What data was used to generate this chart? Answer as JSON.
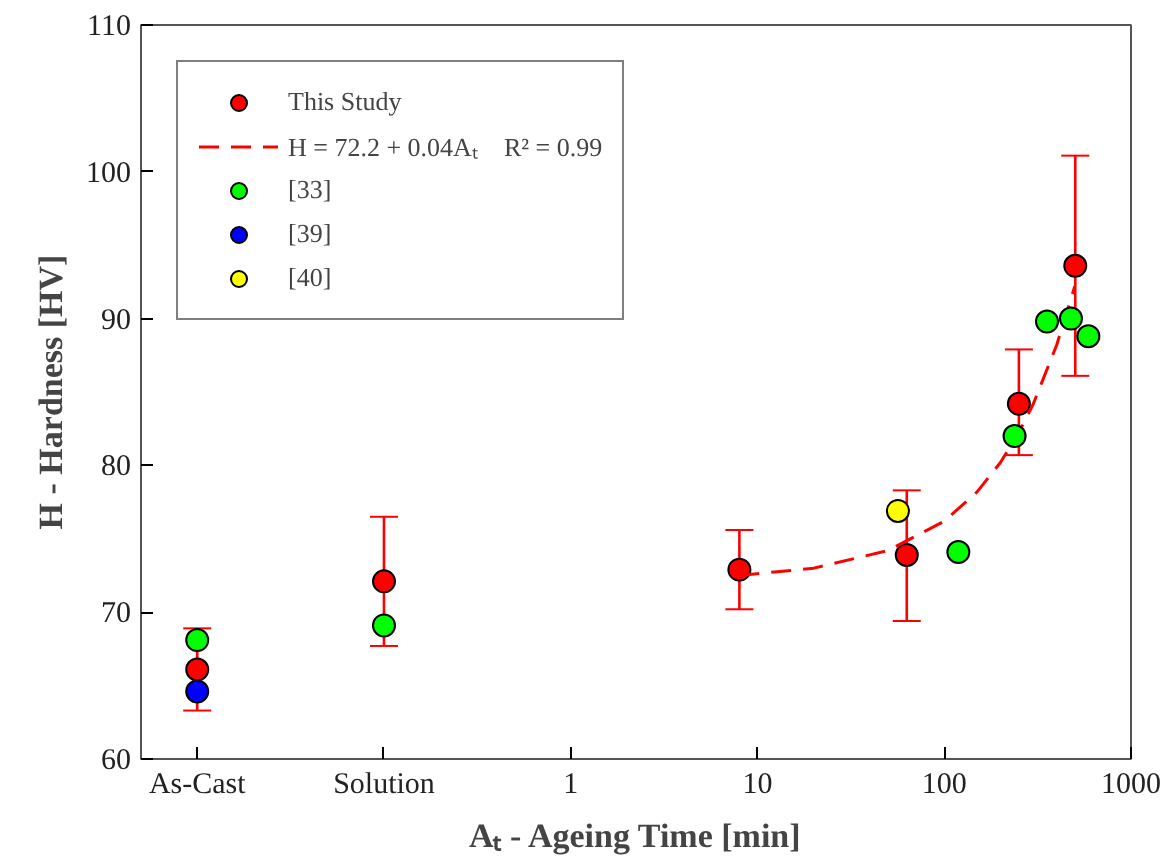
{
  "chart_data": {
    "type": "scatter",
    "xlabel": "Aₜ - Ageing Time [min]",
    "ylabel": "H - Hardness [HV]",
    "log": "x",
    "xlim": [
      0.005,
      1000
    ],
    "ylim": [
      60,
      110
    ],
    "xticks": [
      {
        "value": 0.01,
        "label": "As-Cast"
      },
      {
        "value": 0.1,
        "label": "Solution"
      },
      1,
      10,
      100,
      1000
    ],
    "yticks": [
      60,
      70,
      80,
      90,
      100,
      110
    ],
    "grid": false,
    "legend": "top left",
    "marker": "circle",
    "series": [
      {
        "name": "This Study",
        "color": "#ff0000",
        "x": [
          0.01,
          0.1,
          8,
          63,
          251,
          503
        ],
        "values": [
          66.1,
          72.1,
          72.9,
          73.9,
          84.2,
          93.6
        ],
        "errors": [
          [
            63.3,
            68.9
          ],
          [
            67.7,
            76.5
          ],
          [
            70.2,
            75.6
          ],
          [
            69.4,
            78.3
          ],
          [
            80.7,
            87.9
          ],
          [
            86.1,
            101.1
          ]
        ]
      },
      {
        "name": "H = 72.2 + 0.04Aₜ    R² = 0.99",
        "type": "line",
        "line_style": "dashed",
        "marker": "none",
        "color": "#ff0000",
        "x": [
          8,
          20,
          50,
          100,
          150,
          200,
          250,
          300,
          400,
          500
        ],
        "values": [
          72.5,
          73.0,
          74.2,
          76.2,
          78.2,
          80.2,
          82.2,
          84.2,
          88.2,
          92.2
        ]
      },
      {
        "name": "[33]",
        "color": "#00ff00",
        "x": [
          0.01,
          0.1,
          119,
          238,
          355,
          477,
          591
        ],
        "values": [
          68.1,
          69.1,
          74.1,
          82.0,
          89.8,
          90.0,
          88.8
        ]
      },
      {
        "name": "[39]",
        "color": "#0000ff",
        "x": [
          0.01
        ],
        "values": [
          64.6
        ]
      },
      {
        "name": "[40]",
        "color": "#ffff00",
        "x": [
          56.5
        ],
        "values": [
          76.9
        ]
      }
    ]
  }
}
